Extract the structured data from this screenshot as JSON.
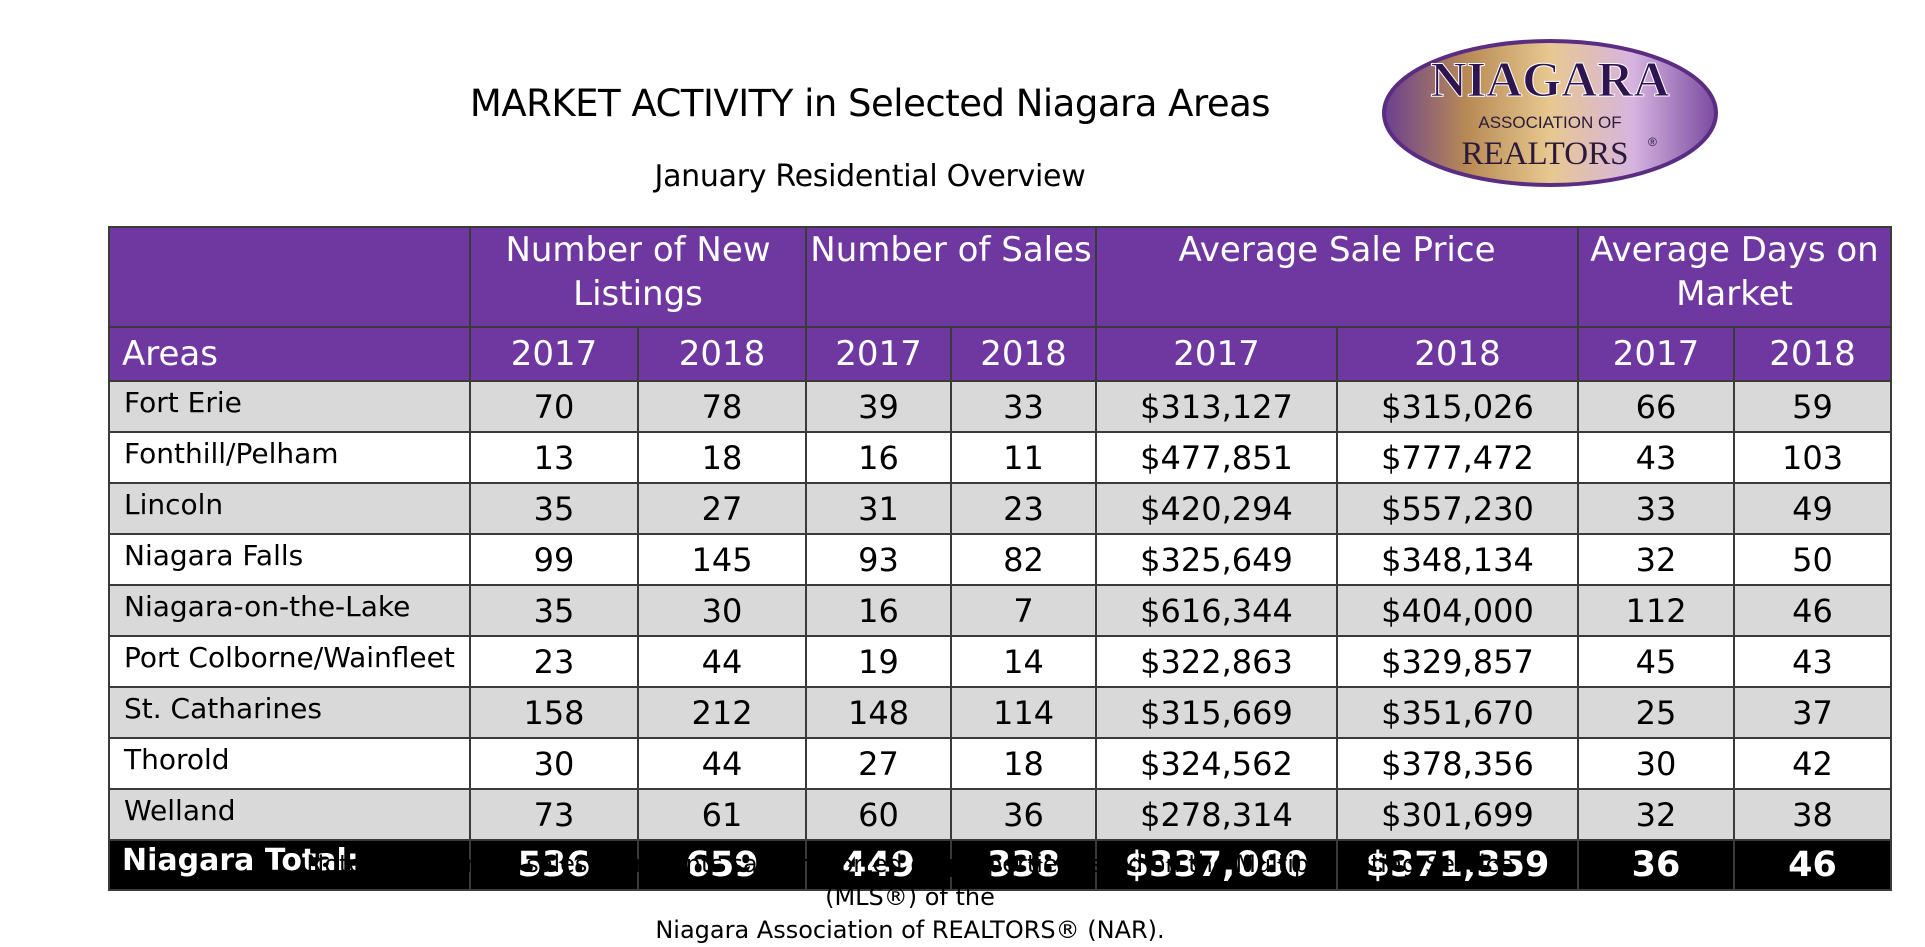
{
  "header": {
    "title": "MARKET ACTIVITY in Selected Niagara Areas",
    "subtitle": "January Residential Overview"
  },
  "logo": {
    "name": "NIAGARA",
    "line2": "ASSOCIATION OF",
    "line3": "REALTORS",
    "mark": "®",
    "colors": {
      "purple": "#5a2d82",
      "gold": "#c89a5a"
    }
  },
  "table": {
    "groups": {
      "new_listings": "Number of New Listings",
      "sales": "Number of Sales",
      "avg_price": "Average Sale Price",
      "avg_days": "Average Days on Market"
    },
    "areas_header": "Areas",
    "years": [
      "2017",
      "2018"
    ],
    "rows": [
      {
        "area": "Fort Erie",
        "v": [
          "70",
          "78",
          "39",
          "33",
          "$313,127",
          "$315,026",
          "66",
          "59"
        ]
      },
      {
        "area": "Fonthill/Pelham",
        "v": [
          "13",
          "18",
          "16",
          "11",
          "$477,851",
          "$777,472",
          "43",
          "103"
        ]
      },
      {
        "area": "Lincoln",
        "v": [
          "35",
          "27",
          "31",
          "23",
          "$420,294",
          "$557,230",
          "33",
          "49"
        ]
      },
      {
        "area": "Niagara Falls",
        "v": [
          "99",
          "145",
          "93",
          "82",
          "$325,649",
          "$348,134",
          "32",
          "50"
        ]
      },
      {
        "area": "Niagara-on-the-Lake",
        "v": [
          "35",
          "30",
          "16",
          "7",
          "$616,344",
          "$404,000",
          "112",
          "46"
        ]
      },
      {
        "area": "Port Colborne/Wainfleet",
        "v": [
          "23",
          "44",
          "19",
          "14",
          "$322,863",
          "$329,857",
          "45",
          "43"
        ]
      },
      {
        "area": "St. Catharines",
        "v": [
          "158",
          "212",
          "148",
          "114",
          "$315,669",
          "$351,670",
          "25",
          "37"
        ]
      },
      {
        "area": "Thorold",
        "v": [
          "30",
          "44",
          "27",
          "18",
          "$324,562",
          "$378,356",
          "30",
          "42"
        ]
      },
      {
        "area": "Welland",
        "v": [
          "73",
          "61",
          "60",
          "36",
          "$278,314",
          "$301,699",
          "32",
          "38"
        ]
      }
    ],
    "total": {
      "area": "Niagara Total:",
      "v": [
        "536",
        "659",
        "449",
        "338",
        "$337,080",
        "$371,359",
        "36",
        "46"
      ]
    },
    "colors": {
      "header": "#6f38a1",
      "shade": "#d9d9d9",
      "total": "#000000"
    }
  },
  "note": {
    "line1": "Note: Numbers of sales represents sales reported on properties listed on the Multiple Listing Service (MLS®) of the",
    "line2": "Niagara Association of REALTORS® (NAR)."
  }
}
